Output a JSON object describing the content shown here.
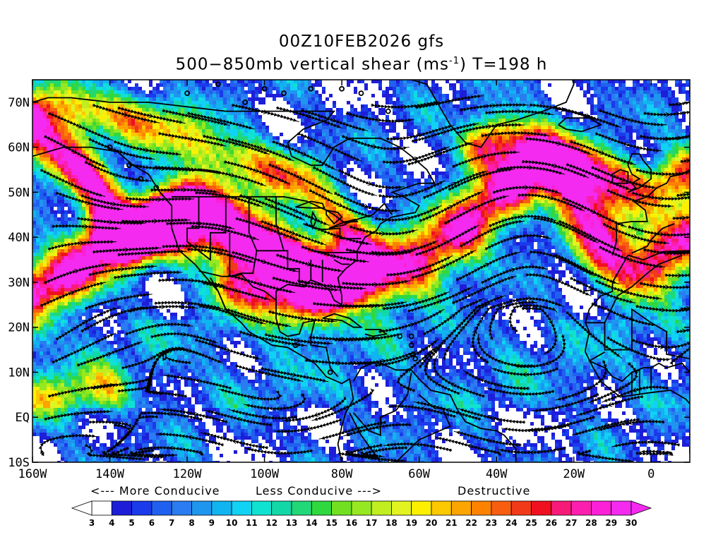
{
  "header": {
    "line1": "00Z10FEB2026 gfs",
    "line2_a": "500−850mb vertical shear (ms",
    "line2_sup": "-1",
    "line2_b": ") T=198 h"
  },
  "map": {
    "lon_range": [
      -160,
      10
    ],
    "lat_range": [
      -10,
      75
    ],
    "lon_ticks": [
      {
        "value": -160,
        "label": "160W"
      },
      {
        "value": -140,
        "label": "140W"
      },
      {
        "value": -120,
        "label": "120W"
      },
      {
        "value": -100,
        "label": "100W"
      },
      {
        "value": -80,
        "label": "80W"
      },
      {
        "value": -60,
        "label": "60W"
      },
      {
        "value": -40,
        "label": "40W"
      },
      {
        "value": -20,
        "label": "20W"
      },
      {
        "value": 0,
        "label": "0"
      }
    ],
    "lat_ticks": [
      {
        "value": -10,
        "label": "10S"
      },
      {
        "value": 0,
        "label": "EQ"
      },
      {
        "value": 10,
        "label": "10N"
      },
      {
        "value": 20,
        "label": "20N"
      },
      {
        "value": 30,
        "label": "30N"
      },
      {
        "value": 40,
        "label": "40N"
      },
      {
        "value": 50,
        "label": "50N"
      },
      {
        "value": 60,
        "label": "60N"
      },
      {
        "value": 70,
        "label": "70N"
      }
    ],
    "field": "500-850mb vertical shear magnitude",
    "overlay": "shear vector streamlines with arrowheads; black coastline and political boundaries"
  },
  "legend": {
    "notes": {
      "more_conducive": "<--- More Conducive",
      "less_conducive": "Less Conducive --->",
      "destructive": "Destructive"
    },
    "values": [
      3,
      4,
      5,
      6,
      7,
      8,
      9,
      10,
      11,
      12,
      13,
      14,
      15,
      16,
      17,
      18,
      19,
      20,
      21,
      22,
      23,
      24,
      25,
      26,
      27,
      28,
      29,
      30
    ],
    "colors": [
      "#ffffff",
      "#1e1ed8",
      "#1a3aec",
      "#2060f0",
      "#2a7cf0",
      "#1e96f0",
      "#10b4f0",
      "#10d2f4",
      "#10e2d2",
      "#12d8a8",
      "#20d878",
      "#30d840",
      "#70e020",
      "#96e820",
      "#c0ee20",
      "#e2f420",
      "#fcf000",
      "#fcc800",
      "#fca400",
      "#fc8200",
      "#f85e10",
      "#f03a18",
      "#f01020",
      "#f81a78",
      "#fc1eae",
      "#fc20d8",
      "#f42af0"
    ]
  }
}
